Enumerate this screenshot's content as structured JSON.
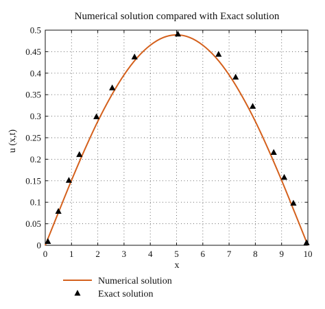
{
  "chart_data": {
    "type": "line",
    "title": "Numerical solution compared with Exact solution",
    "xlabel": "x",
    "ylabel": "u (x,t)",
    "xlim": [
      0,
      10
    ],
    "ylim": [
      0,
      0.5
    ],
    "grid": true,
    "legend_position": "bottom-left",
    "x_ticks": [
      "0",
      "1",
      "2",
      "3",
      "4",
      "5",
      "6",
      "7",
      "8",
      "9",
      "10"
    ],
    "y_ticks": [
      "0",
      "0.05",
      "0.1",
      "0.15",
      "0.2",
      "0.25",
      "0.3",
      "0.35",
      "0.4",
      "0.45",
      "0.5"
    ],
    "series": [
      {
        "name": "Numerical solution",
        "style": "line",
        "color": "#d4601c",
        "x": [
          0,
          0.5,
          1,
          1.5,
          2,
          2.5,
          3,
          3.5,
          4,
          4.5,
          5,
          5.5,
          6,
          6.5,
          7,
          7.5,
          8,
          8.5,
          9,
          9.5,
          10
        ],
        "y": [
          0,
          0.076,
          0.151,
          0.222,
          0.288,
          0.346,
          0.396,
          0.436,
          0.465,
          0.483,
          0.489,
          0.483,
          0.465,
          0.436,
          0.396,
          0.346,
          0.288,
          0.222,
          0.151,
          0.076,
          0
        ]
      },
      {
        "name": "Exact solution",
        "style": "marker",
        "marker": "triangle",
        "color": "#000000",
        "x": [
          0.1,
          0.5,
          0.9,
          1.3,
          1.95,
          2.55,
          3.4,
          5.05,
          6.6,
          7.25,
          7.9,
          8.7,
          9.1,
          9.45,
          9.95
        ],
        "y": [
          0.008,
          0.078,
          0.15,
          0.21,
          0.298,
          0.365,
          0.437,
          0.49,
          0.443,
          0.39,
          0.322,
          0.215,
          0.157,
          0.097,
          0.005
        ]
      }
    ]
  }
}
